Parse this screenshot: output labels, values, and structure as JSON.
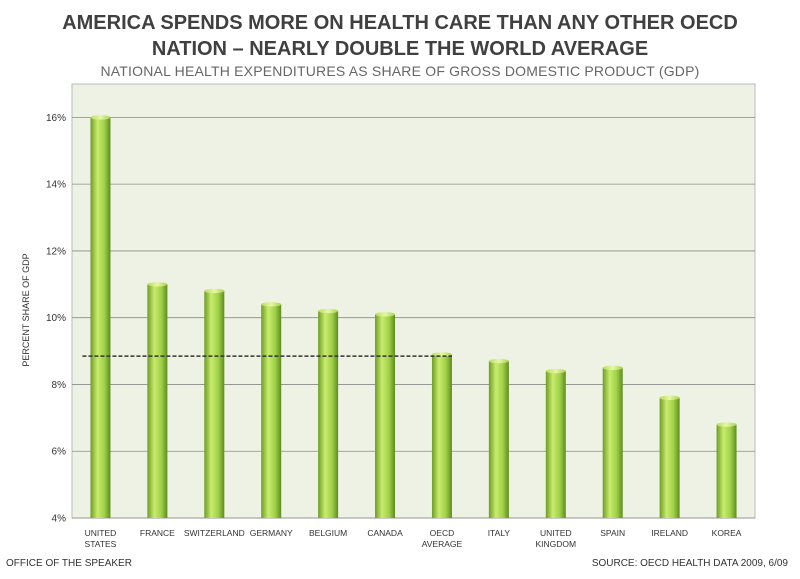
{
  "title_line1": "AMERICA SPENDS MORE ON HEALTH CARE THAN ANY OTHER OECD",
  "title_line2": "NATION – NEARLY DOUBLE THE WORLD AVERAGE",
  "subtitle": "NATIONAL HEALTH EXPENDITURES AS SHARE OF GROSS DOMESTIC PRODUCT (GDP)",
  "footer_left": "OFFICE OF THE SPEAKER",
  "footer_right": "SOURCE: OECD HEALTH DATA 2009, 6/09",
  "colors": {
    "plot_background": "#eef2e4",
    "bar_light": "#c8ea6a",
    "bar_mid": "#8fc33a",
    "bar_dark": "#5e8c1f",
    "reference_line": "#333333"
  },
  "chart_data": {
    "type": "bar",
    "categories": [
      [
        "UNITED",
        "STATES"
      ],
      [
        "FRANCE"
      ],
      [
        "SWITZERLAND"
      ],
      [
        "GERMANY"
      ],
      [
        "BELGIUM"
      ],
      [
        "CANADA"
      ],
      [
        "OECD",
        "AVERAGE"
      ],
      [
        "ITALY"
      ],
      [
        "UNITED",
        "KINGDOM"
      ],
      [
        "SPAIN"
      ],
      [
        "IRELAND"
      ],
      [
        "KOREA"
      ]
    ],
    "values": [
      16.0,
      11.0,
      10.8,
      10.4,
      10.2,
      10.1,
      8.9,
      8.7,
      8.4,
      8.5,
      7.6,
      6.8
    ],
    "ylabel": "PERCENT SHARE OF GDP",
    "ylim": [
      4,
      17
    ],
    "yticks": [
      4,
      6,
      8,
      10,
      12,
      14,
      16
    ],
    "ytick_suffix": "%",
    "reference_line": {
      "value": 8.85,
      "from_category": 0,
      "to_category": 6,
      "style": "dashed"
    },
    "grid": true
  }
}
